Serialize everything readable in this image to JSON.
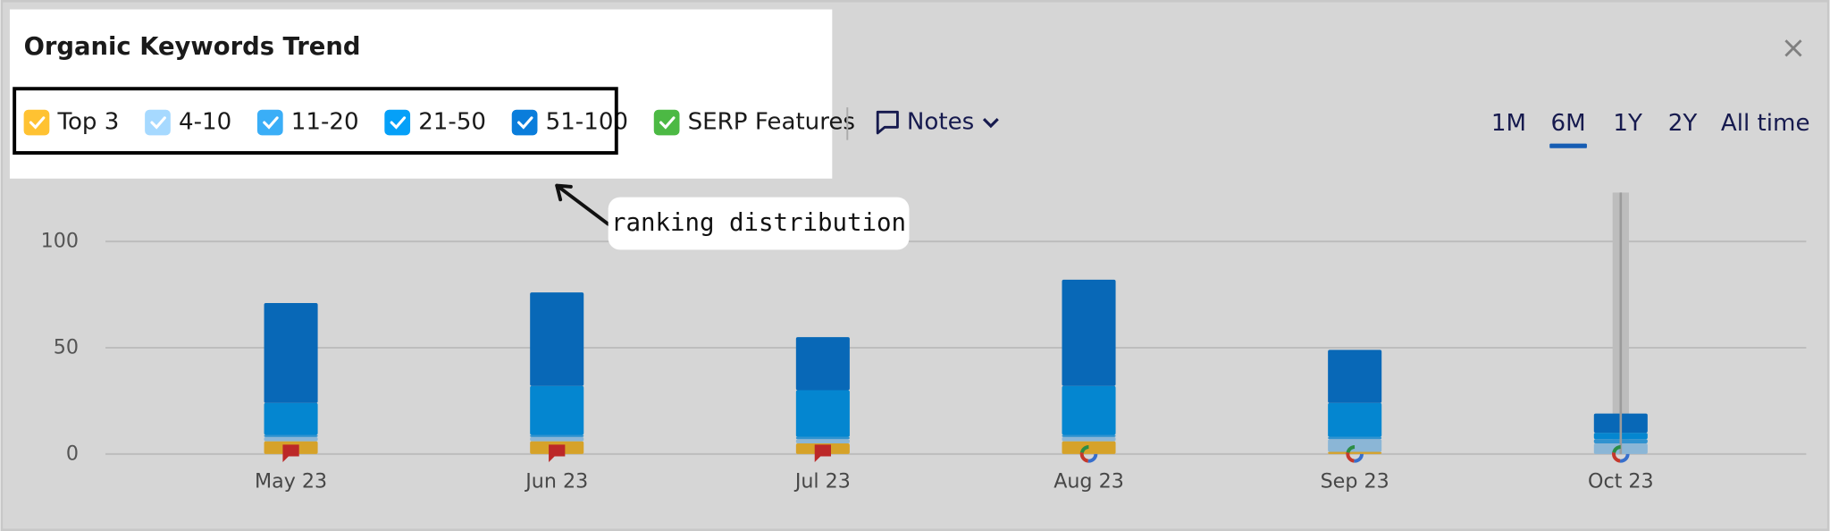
{
  "header": {
    "title": "Organic Keywords Trend"
  },
  "serp_features": {
    "label": "SERP Features",
    "color": "#4cb944"
  },
  "notes": "Notes",
  "periods": [
    "1M",
    "6M",
    "1Y",
    "2Y",
    "All time"
  ],
  "selected_period": "6M",
  "close": "×",
  "annotation": "ranking distribution",
  "chart_data": {
    "type": "bar",
    "stacked": true,
    "categories": [
      "May 23",
      "Jun 23",
      "Jul 23",
      "Aug 23",
      "Sep 23",
      "Oct 23"
    ],
    "series": [
      {
        "name": "Top 3",
        "color": "#ffc232",
        "values": [
          6,
          6,
          5,
          6,
          1,
          0
        ]
      },
      {
        "name": "4-10",
        "color": "#a6d9ff",
        "values": [
          2,
          2,
          2,
          2,
          6,
          5
        ]
      },
      {
        "name": "11-20",
        "color": "#3aaef7",
        "values": [
          1,
          1,
          1,
          1,
          1,
          2
        ]
      },
      {
        "name": "21-50",
        "color": "#05a0f8",
        "values": [
          15,
          23,
          22,
          23,
          16,
          3
        ]
      },
      {
        "name": "51-100",
        "color": "#0a7ddb",
        "values": [
          47,
          44,
          25,
          50,
          25,
          9
        ]
      }
    ],
    "ylim": [
      0,
      123
    ],
    "yticks": [
      0,
      50,
      100
    ],
    "grid": true
  }
}
